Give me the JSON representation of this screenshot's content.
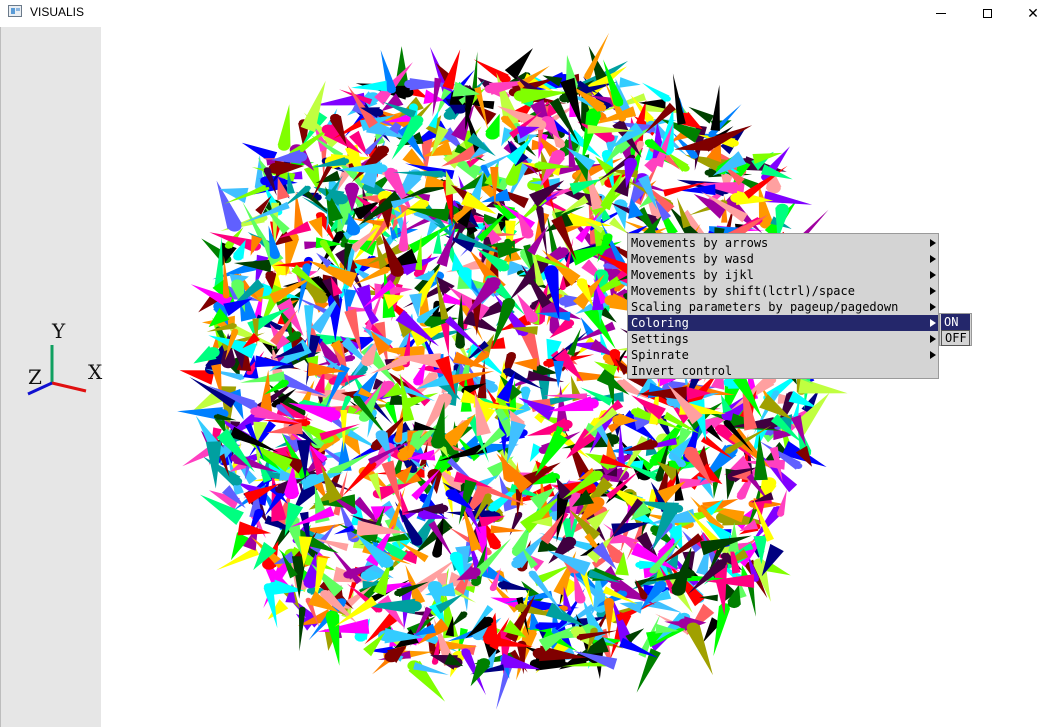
{
  "window": {
    "title": "VISUALIS",
    "app_icon": "window-app-icon",
    "controls": {
      "minimize_icon": "minimize-icon",
      "maximize_icon": "maximize-icon",
      "close_icon": "close-icon",
      "close_glyph": "✕"
    }
  },
  "axis_gizmo": {
    "x_label": "X",
    "y_label": "Y",
    "z_label": "Z",
    "colors": {
      "x": "#e01010",
      "y": "#10a060",
      "z": "#1010d0"
    }
  },
  "scene": {
    "description_icon": "arrow-cloud",
    "palette": [
      "#ff0000",
      "#00ff00",
      "#0000ff",
      "#ffff00",
      "#ff00ff",
      "#00ffff",
      "#ff8000",
      "#8000ff",
      "#00ff80",
      "#ff0080",
      "#80ff00",
      "#0080ff",
      "#000080",
      "#008000",
      "#800000",
      "#000000",
      "#ff6060",
      "#60ff60",
      "#6060ff",
      "#ffa0a0",
      "#a000a0",
      "#00a0a0",
      "#a0a000",
      "#ff40c0",
      "#40c0ff",
      "#c0ff40",
      "#004000",
      "#400040",
      "#ff9900",
      "#33ccff"
    ]
  },
  "context_menu": {
    "items": [
      {
        "label": "Movements by arrows",
        "has_submenu": true,
        "highlighted": false
      },
      {
        "label": "Movements by wasd",
        "has_submenu": true,
        "highlighted": false
      },
      {
        "label": "Movements by ijkl",
        "has_submenu": true,
        "highlighted": false
      },
      {
        "label": "Movements by shift(lctrl)/space",
        "has_submenu": true,
        "highlighted": false
      },
      {
        "label": "Scaling parameters by pageup/pagedown",
        "has_submenu": true,
        "highlighted": false
      },
      {
        "label": "Coloring",
        "has_submenu": true,
        "highlighted": true
      },
      {
        "label": "Settings",
        "has_submenu": true,
        "highlighted": false
      },
      {
        "label": "Spinrate",
        "has_submenu": true,
        "highlighted": false
      },
      {
        "label": "Invert control",
        "has_submenu": false,
        "highlighted": false
      }
    ],
    "highlight_color": "#24276b",
    "background_color": "#d4d4d4"
  },
  "coloring_submenu": {
    "items": [
      {
        "label": "ON",
        "highlighted": true
      },
      {
        "label": "OFF",
        "highlighted": false
      }
    ]
  }
}
